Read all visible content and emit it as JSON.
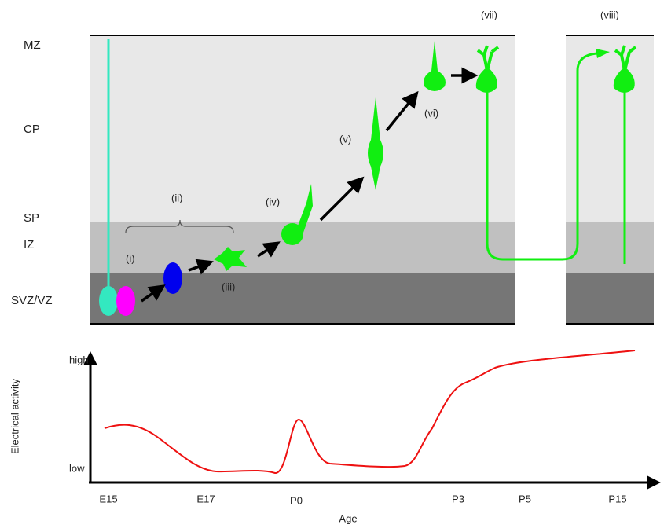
{
  "layers": [
    "MZ",
    "CP",
    "SP",
    "IZ",
    "SVZ/VZ"
  ],
  "stages": [
    "(i)",
    "(ii)",
    "(iii)",
    "(iv)",
    "(v)",
    "(vi)",
    "(vii)",
    "(viii)"
  ],
  "graph": {
    "y_label": "Electrical activity",
    "y_high": "high",
    "y_low": "low",
    "x_label": "Age",
    "ages": [
      "E15",
      "E17",
      "P0",
      "P3",
      "P5",
      "P15"
    ]
  }
}
